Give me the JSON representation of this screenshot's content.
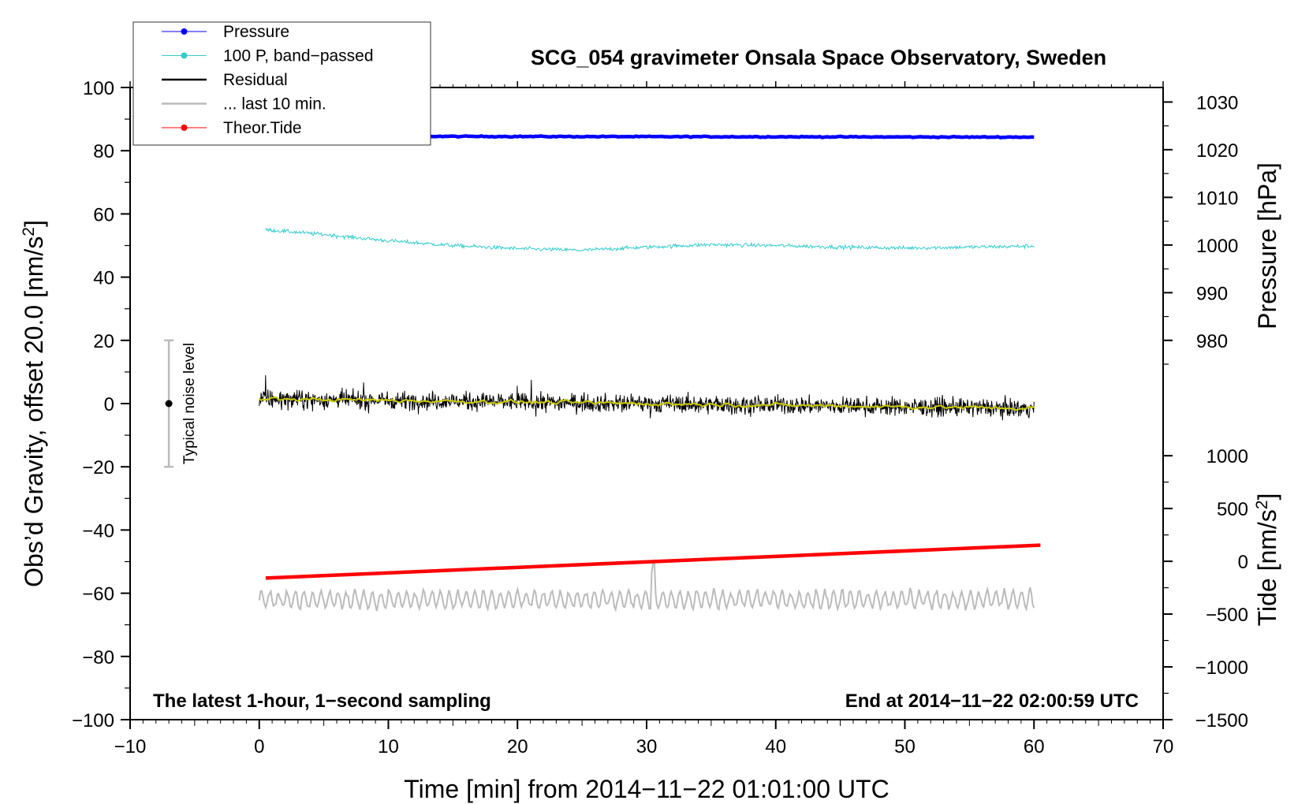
{
  "chart_data": {
    "type": "line",
    "title": "SCG_054 gravimeter Onsala Space Observatory, Sweden",
    "xlabel": "Time [min] from 2014−11−22 01:01:00 UTC",
    "ylabel": "Obs’d Gravity, offset 20.0 [nm/s²]",
    "ylabel_main": "Obs’d Gravity, offset 20.0 [nm/s",
    "ylabel_sup": "2",
    "ylabel_end": "]",
    "right_label_pressure": "Pressure [hPa]",
    "right_label_tide_main": "Tide [nm/s",
    "right_label_tide_sup": "2",
    "right_label_tide_end": "]",
    "xlim": [
      -10,
      70
    ],
    "ylim": [
      -100,
      100
    ],
    "x_ticks": [
      -10,
      0,
      10,
      20,
      30,
      40,
      50,
      60,
      70
    ],
    "x_tick_labels": [
      "−10",
      "0",
      "10",
      "20",
      "30",
      "40",
      "50",
      "60",
      "70"
    ],
    "y_ticks": [
      -100,
      -80,
      -60,
      -40,
      -20,
      0,
      20,
      40,
      60,
      80,
      100
    ],
    "y_tick_labels": [
      "−100",
      "−80",
      "−60",
      "−40",
      "−20",
      "0",
      "20",
      "40",
      "60",
      "80",
      "100"
    ],
    "pressure_axis": {
      "label": "Pressure [hPa]",
      "ticks": [
        980,
        990,
        1000,
        1010,
        1020,
        1030
      ],
      "tick_labels": [
        "980",
        "990",
        "1000",
        "1010",
        "1020",
        "1030"
      ],
      "maps": [
        [
          980,
          20
        ],
        [
          1030,
          95.4
        ]
      ]
    },
    "tide_axis": {
      "label": "Tide [nm/s²]",
      "ticks": [
        -1500,
        -1000,
        -500,
        0,
        500,
        1000
      ],
      "tick_labels": [
        "−1500",
        "−1000",
        "−500",
        "0",
        "500",
        "1000"
      ],
      "maps": [
        [
          -1500,
          -100
        ],
        [
          1000,
          -16.5
        ]
      ]
    },
    "annotations": {
      "left": "The latest 1-hour, 1−second sampling",
      "right": "End at 2014−11−22 02:00:59 UTC"
    },
    "noise_bar": {
      "label": "Typical noise level",
      "x": -7,
      "center": 0,
      "low": -20,
      "high": 20
    },
    "legend": {
      "placement": "top-left",
      "entries": [
        {
          "label": "Pressure",
          "color": "#0000ff",
          "marker": true
        },
        {
          "label": "100 P, band−passed",
          "color": "#33cccc",
          "marker": true
        },
        {
          "label": "Residual",
          "color": "#000000",
          "marker": false
        },
        {
          "label": "... last 10 min.",
          "color": "#bbbbbb",
          "marker": false
        },
        {
          "label": "Theor.Tide",
          "color": "#ff0000",
          "marker": true
        }
      ]
    },
    "series": [
      {
        "name": "Pressure",
        "color": "#0000ff",
        "x_range": [
          0,
          60
        ],
        "y_start": 84.6,
        "y_end": 84.3,
        "noise": 0.15
      },
      {
        "name": "100 P, band-passed",
        "color": "#33cccc",
        "x": [
          0.5,
          5,
          10,
          15,
          20,
          25,
          30,
          35,
          40,
          45,
          50,
          55,
          60
        ],
        "values": [
          55,
          53.5,
          51.5,
          50,
          49,
          48.5,
          49.5,
          50.3,
          50,
          49.5,
          49.2,
          49.5,
          49.8
        ],
        "noise": 0.6
      },
      {
        "name": "Residual",
        "color": "#000000",
        "x_range": [
          0,
          60
        ],
        "y_start": 1.5,
        "y_end": -1.5,
        "amplitude": 2.8
      },
      {
        "name": "Residual smoothed",
        "color": "#cccc00",
        "x_range": [
          0,
          60
        ],
        "y_start": 1.5,
        "y_end": -1.5,
        "amplitude": 0.6
      },
      {
        "name": "... last 10 min.",
        "color": "#bbbbbb",
        "x_range": [
          0,
          60
        ],
        "y_center": -62,
        "amplitude": 3
      },
      {
        "name": "Theor.Tide",
        "color": "#ff0000",
        "x": [
          0.5,
          60.5
        ],
        "values": [
          -55.2,
          -44.8
        ]
      }
    ]
  }
}
